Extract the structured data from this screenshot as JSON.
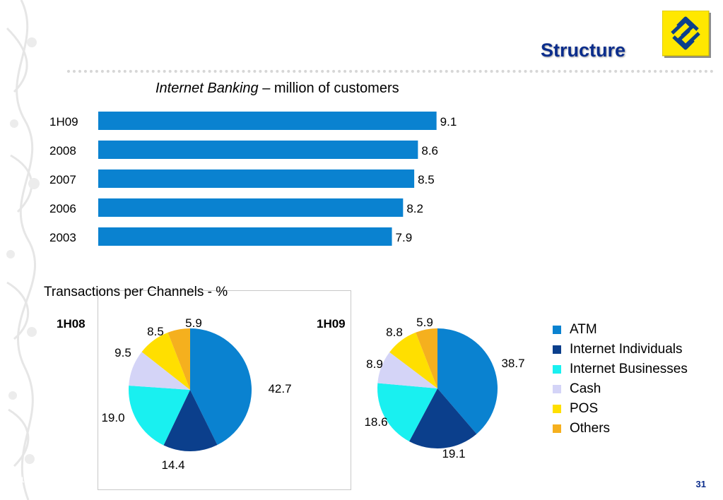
{
  "header": {
    "title": "Structure",
    "logo": "banco-do-brasil-logo"
  },
  "page_number": "31",
  "chart_data": [
    {
      "type": "bar",
      "orientation": "horizontal",
      "title_italic": "Internet Banking",
      "title_rest": " – million of customers",
      "categories": [
        "1H09",
        "2008",
        "2007",
        "2006",
        "2003"
      ],
      "values": [
        9.1,
        8.6,
        8.5,
        8.2,
        7.9
      ],
      "labels": [
        "9.1",
        "8.6",
        "8.5",
        "8.2",
        "7.9"
      ],
      "color": "#0a82d0",
      "grid": false
    },
    {
      "type": "pie",
      "section_title": "Transactions per Channels - %",
      "title": "1H08",
      "categories": [
        "ATM",
        "Internet Individuals",
        "Internet Businesses",
        "Cash",
        "POS",
        "Others"
      ],
      "values": [
        42.7,
        14.4,
        19.0,
        9.5,
        8.5,
        5.9
      ],
      "labels": [
        "42.7",
        "14.4",
        "19.0",
        "9.5",
        "8.5",
        "5.9"
      ]
    },
    {
      "type": "pie",
      "title": "1H09",
      "categories": [
        "ATM",
        "Internet Individuals",
        "Internet Businesses",
        "Cash",
        "POS",
        "Others"
      ],
      "values": [
        38.7,
        19.1,
        18.6,
        8.9,
        8.8,
        5.9
      ],
      "labels": [
        "38.7",
        "19.1",
        "18.6",
        "8.9",
        "8.8",
        "5.9"
      ]
    }
  ],
  "legend": {
    "items": [
      {
        "label": "ATM",
        "color": "#0a82d0"
      },
      {
        "label": "Internet Individuals",
        "color": "#0b3f8c"
      },
      {
        "label": "Internet Businesses",
        "color": "#19f0f0"
      },
      {
        "label": "Cash",
        "color": "#d4d4f7"
      },
      {
        "label": "POS",
        "color": "#ffdf00"
      },
      {
        "label": "Others",
        "color": "#f5b01e"
      }
    ]
  }
}
